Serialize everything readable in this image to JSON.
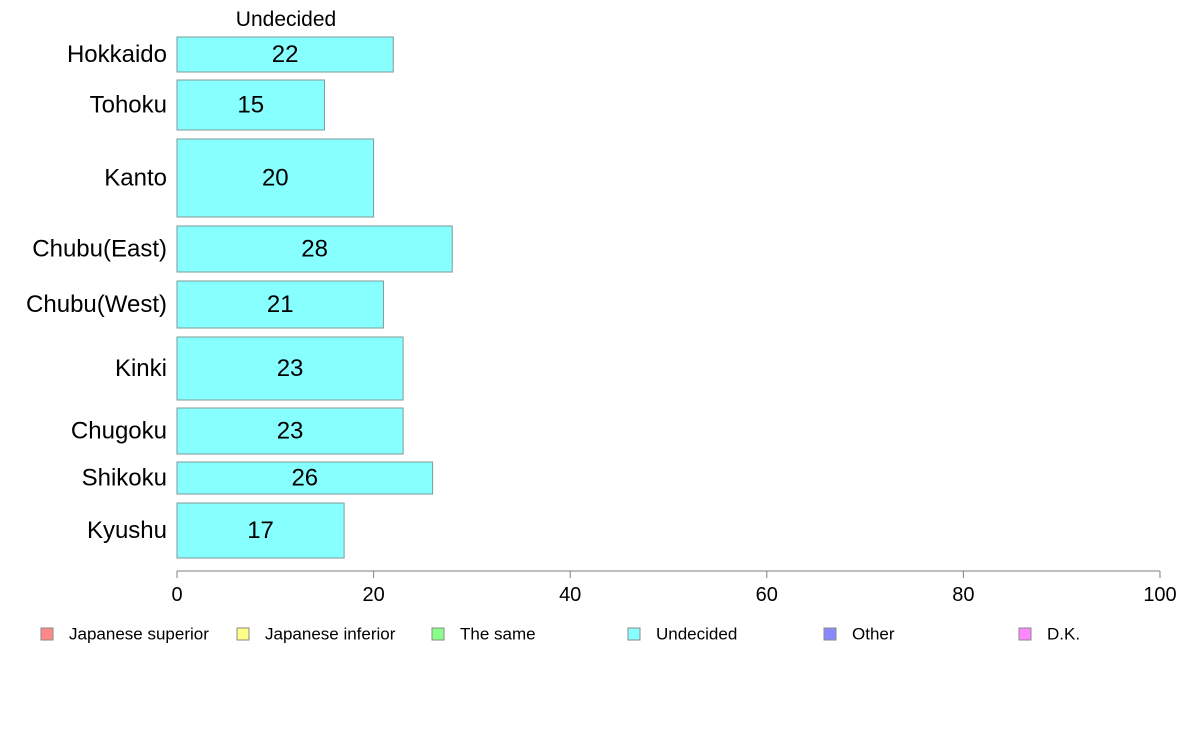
{
  "chart_data": {
    "type": "bar",
    "orientation": "horizontal",
    "title": "Undecided",
    "categories": [
      "Hokkaido",
      "Tohoku",
      "Kanto",
      "Chubu(East)",
      "Chubu(West)",
      "Kinki",
      "Chugoku",
      "Shikoku",
      "Kyushu"
    ],
    "series": [
      {
        "name": "Undecided",
        "values": [
          22,
          15,
          20,
          28,
          21,
          23,
          23,
          26,
          17
        ],
        "color": "#88ffff"
      }
    ],
    "data_labels": [
      "22",
      "15",
      "20",
      "28",
      "21",
      "23",
      "23",
      "26",
      "17"
    ],
    "xlim": [
      0,
      100
    ],
    "x_ticks": [
      0,
      20,
      40,
      60,
      80,
      100
    ],
    "x_tick_labels": [
      "0",
      "20",
      "40",
      "60",
      "80",
      "100"
    ],
    "xlabel": "",
    "ylabel": "",
    "grid": false,
    "bar_stroke_color": "#7f9a9a",
    "axis_color": "#7f7f7f",
    "legend": {
      "placement": "bottom",
      "items": [
        {
          "label": "Japanese superior",
          "color": "#ff8888"
        },
        {
          "label": "Japanese inferior",
          "color": "#ffff88"
        },
        {
          "label": "The same",
          "color": "#88ff88"
        },
        {
          "label": "Undecided",
          "color": "#88ffff"
        },
        {
          "label": "Other",
          "color": "#8888ff"
        },
        {
          "label": "D.K.",
          "color": "#ff88ff"
        }
      ]
    }
  }
}
